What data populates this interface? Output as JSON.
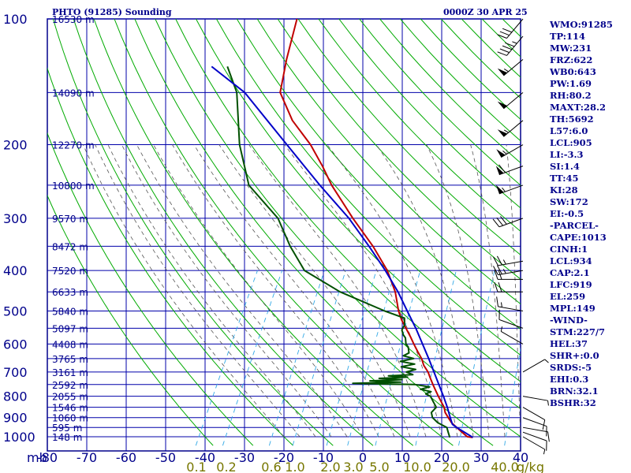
{
  "header": {
    "station": "PHTO (91285) Sounding",
    "time": "0000Z 30 APR 25"
  },
  "indices": [
    "WMO:91285",
    "TP:114",
    "MW:231",
    "FRZ:622",
    "WB0:643",
    "PW:1.69",
    "RH:80.2",
    "MAXT:28.2",
    "TH:5692",
    "L57:6.0",
    "LCL:905",
    "LI:-3.3",
    "SI:1.4",
    "TT:45",
    "KI:28",
    "SW:172",
    "EI:-0.5",
    "-PARCEL-",
    "CAPE:1013",
    "CINH:1",
    "LCL:934",
    "CAP:2.1",
    "LFC:919",
    "EL:259",
    "MPL:149",
    "-WIND-",
    "STM:227/7",
    "HEL:37",
    "SHR+:0.0",
    "SRDS:-5",
    "EHI:0.3",
    "BRN:32.1",
    "BSHR:32"
  ],
  "colors": {
    "frame": "#00008b",
    "grid": "#0000aa",
    "dry_adiabat": "#00aa00",
    "moist_adiabat": "#555555",
    "mixing_ratio": "#33a9e6",
    "temperature": "#c00000",
    "dewpoint": "#005000",
    "parcel": "#0000c8",
    "label": "#00008b",
    "bottom_label": "#777700"
  },
  "chart_data": {
    "type": "line",
    "subtype": "skew-T log-p sounding",
    "title": "PHTO (91285) Sounding",
    "x_unit": "°C",
    "y_unit": "mb",
    "xlim": [
      -80,
      40
    ],
    "ylim": [
      1000,
      100
    ],
    "y_scale": "log",
    "x_ticks": [
      "-80",
      "-70",
      "-60",
      "-50",
      "-40",
      "-30",
      "-20",
      "-10",
      "0",
      "10",
      "20",
      "30",
      "40"
    ],
    "y_ticks": [
      "100",
      "200",
      "300",
      "400",
      "500",
      "600",
      "700",
      "800",
      "900",
      "1000"
    ],
    "corner_label": "mb",
    "height_labels": [
      {
        "p": 100,
        "label": "16530 m"
      },
      {
        "p": 150,
        "label": "14090 m"
      },
      {
        "p": 200,
        "label": "12270 m"
      },
      {
        "p": 250,
        "label": "10800 m"
      },
      {
        "p": 300,
        "label": "9570 m"
      },
      {
        "p": 350,
        "label": "8472 m"
      },
      {
        "p": 400,
        "label": "7520 m"
      },
      {
        "p": 450,
        "label": "6633 m"
      },
      {
        "p": 500,
        "label": "5840 m"
      },
      {
        "p": 550,
        "label": "5097 m"
      },
      {
        "p": 600,
        "label": "4408 m"
      },
      {
        "p": 650,
        "label": "3765 m"
      },
      {
        "p": 700,
        "label": "3161 m"
      },
      {
        "p": 750,
        "label": "2592 m"
      },
      {
        "p": 800,
        "label": "2055 m"
      },
      {
        "p": 850,
        "label": "1546 m"
      },
      {
        "p": 900,
        "label": "1060 m"
      },
      {
        "p": 950,
        "label": "595 m"
      },
      {
        "p": 1000,
        "label": "148 m"
      }
    ],
    "mixing_ratio_labels": [
      "0.1",
      "0.2",
      "0.6",
      "1.0",
      "2.0",
      "3.0",
      "5.0",
      "10.0",
      "20.0",
      "40.0"
    ],
    "mixing_ratio_unit": "g/kg",
    "series": [
      {
        "role": "temperature",
        "values": [
          [
            1004,
            28
          ],
          [
            1000,
            26.5
          ],
          [
            975,
            24.5
          ],
          [
            950,
            22.5
          ],
          [
            925,
            20.5
          ],
          [
            900,
            19
          ],
          [
            875,
            17.5
          ],
          [
            850,
            16.5
          ],
          [
            825,
            15
          ],
          [
            800,
            13.5
          ],
          [
            775,
            12
          ],
          [
            750,
            10.5
          ],
          [
            725,
            9
          ],
          [
            700,
            7.5
          ],
          [
            675,
            5.5
          ],
          [
            650,
            4
          ],
          [
            625,
            2
          ],
          [
            600,
            0
          ],
          [
            575,
            -2
          ],
          [
            550,
            -4.2
          ],
          [
            525,
            -6.5
          ],
          [
            500,
            -8.5
          ],
          [
            450,
            -12
          ],
          [
            400,
            -17
          ],
          [
            350,
            -24
          ],
          [
            300,
            -33
          ],
          [
            250,
            -43
          ],
          [
            225,
            -48
          ],
          [
            200,
            -54
          ],
          [
            175,
            -62
          ],
          [
            150,
            -69
          ],
          [
            125,
            -72
          ],
          [
            100,
            -75
          ]
        ]
      },
      {
        "role": "dewpoint",
        "values": [
          [
            1004,
            22
          ],
          [
            1000,
            22
          ],
          [
            975,
            21
          ],
          [
            950,
            20
          ],
          [
            925,
            17
          ],
          [
            900,
            15
          ],
          [
            875,
            14
          ],
          [
            850,
            14.5
          ],
          [
            825,
            13
          ],
          [
            800,
            11.5
          ],
          [
            790,
            10
          ],
          [
            780,
            11
          ],
          [
            770,
            8
          ],
          [
            760,
            10
          ],
          [
            750,
            6
          ],
          [
            745,
            -10
          ],
          [
            740,
            2
          ],
          [
            735,
            -6
          ],
          [
            730,
            2
          ],
          [
            725,
            -4
          ],
          [
            720,
            3
          ],
          [
            715,
            -2
          ],
          [
            710,
            4
          ],
          [
            700,
            2
          ],
          [
            690,
            4
          ],
          [
            680,
            0
          ],
          [
            670,
            3
          ],
          [
            660,
            -1
          ],
          [
            650,
            2
          ],
          [
            640,
            -1
          ],
          [
            630,
            0
          ],
          [
            610,
            -1
          ],
          [
            600,
            -2
          ],
          [
            580,
            -3
          ],
          [
            570,
            -4
          ],
          [
            555,
            -5
          ],
          [
            540,
            -5
          ],
          [
            520,
            -6
          ],
          [
            500,
            -12
          ],
          [
            450,
            -26
          ],
          [
            400,
            -38
          ],
          [
            350,
            -45
          ],
          [
            300,
            -52
          ],
          [
            250,
            -64
          ],
          [
            200,
            -72
          ],
          [
            150,
            -80
          ],
          [
            130,
            -86
          ]
        ]
      },
      {
        "role": "parcel",
        "values": [
          [
            1004,
            28
          ],
          [
            950,
            22.5
          ],
          [
            934,
            21
          ],
          [
            900,
            19.5
          ],
          [
            850,
            17.3
          ],
          [
            800,
            14.8
          ],
          [
            750,
            12
          ],
          [
            700,
            9
          ],
          [
            650,
            5.8
          ],
          [
            600,
            2.2
          ],
          [
            550,
            -1.7
          ],
          [
            500,
            -6.3
          ],
          [
            450,
            -11.3
          ],
          [
            400,
            -17.5
          ],
          [
            350,
            -25
          ],
          [
            300,
            -34
          ],
          [
            250,
            -46
          ],
          [
            200,
            -60
          ],
          [
            150,
            -78
          ],
          [
            130,
            -90
          ]
        ]
      }
    ],
    "wind_barbs": [
      {
        "p": 1000,
        "dir": 120,
        "spd": 5
      },
      {
        "p": 975,
        "dir": 110,
        "spd": 10
      },
      {
        "p": 950,
        "dir": 100,
        "spd": 10
      },
      {
        "p": 900,
        "dir": 110,
        "spd": 10
      },
      {
        "p": 850,
        "dir": 120,
        "spd": 10
      },
      {
        "p": 800,
        "dir": 100,
        "spd": 5
      },
      {
        "p": 700,
        "dir": 60,
        "spd": 5
      },
      {
        "p": 600,
        "dir": 300,
        "spd": 5
      },
      {
        "p": 550,
        "dir": 290,
        "spd": 10
      },
      {
        "p": 500,
        "dir": 280,
        "spd": 15
      },
      {
        "p": 450,
        "dir": 270,
        "spd": 20
      },
      {
        "p": 420,
        "dir": 270,
        "spd": 20
      },
      {
        "p": 400,
        "dir": 260,
        "spd": 25
      },
      {
        "p": 380,
        "dir": 260,
        "spd": 25
      },
      {
        "p": 300,
        "dir": 250,
        "spd": 30
      },
      {
        "p": 250,
        "dir": 250,
        "spd": 55
      },
      {
        "p": 225,
        "dir": 250,
        "spd": 60
      },
      {
        "p": 200,
        "dir": 240,
        "spd": 55
      },
      {
        "p": 175,
        "dir": 230,
        "spd": 55
      },
      {
        "p": 150,
        "dir": 230,
        "spd": 50
      },
      {
        "p": 125,
        "dir": 230,
        "spd": 55
      },
      {
        "p": 110,
        "dir": 220,
        "spd": 45
      },
      {
        "p": 100,
        "dir": 220,
        "spd": 30
      }
    ]
  }
}
